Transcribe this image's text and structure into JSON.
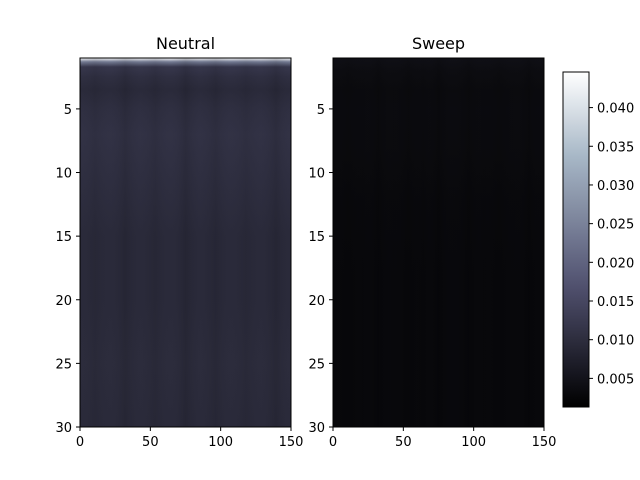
{
  "chart_data": [
    {
      "type": "heatmap",
      "title": "Neutral",
      "x_ticks": [
        0,
        50,
        100,
        150
      ],
      "y_ticks": [
        5,
        10,
        15,
        20,
        25,
        30
      ],
      "xlim": [
        0,
        150
      ],
      "ylim": [
        30,
        1
      ],
      "profile": [
        {
          "y": 1.0,
          "value": 0.044
        },
        {
          "y": 1.3,
          "value": 0.024
        },
        {
          "y": 1.7,
          "value": 0.012
        },
        {
          "y": 2.5,
          "value": 0.0105
        },
        {
          "y": 3.5,
          "value": 0.0095
        },
        {
          "y": 5.0,
          "value": 0.0105
        },
        {
          "y": 7.0,
          "value": 0.011
        },
        {
          "y": 10.0,
          "value": 0.0105
        },
        {
          "y": 15.0,
          "value": 0.0095
        },
        {
          "y": 20.0,
          "value": 0.0095
        },
        {
          "y": 25.0,
          "value": 0.0098
        },
        {
          "y": 30.0,
          "value": 0.0095
        }
      ]
    },
    {
      "type": "heatmap",
      "title": "Sweep",
      "x_ticks": [
        0,
        50,
        100,
        150
      ],
      "y_ticks": [
        5,
        10,
        15,
        20,
        25,
        30
      ],
      "xlim": [
        0,
        150
      ],
      "ylim": [
        30,
        1
      ],
      "profile": [
        {
          "y": 1.0,
          "value": 0.0042
        },
        {
          "y": 2.0,
          "value": 0.0036
        },
        {
          "y": 3.5,
          "value": 0.0032
        },
        {
          "y": 5.0,
          "value": 0.0033
        },
        {
          "y": 8.0,
          "value": 0.0032
        },
        {
          "y": 12.0,
          "value": 0.0029
        },
        {
          "y": 18.0,
          "value": 0.0027
        },
        {
          "y": 24.0,
          "value": 0.0027
        },
        {
          "y": 30.0,
          "value": 0.0027
        }
      ]
    }
  ],
  "colorbar": {
    "colormap": "bone",
    "range": [
      0.0013,
      0.0446
    ],
    "ticks": [
      "0.005",
      "0.010",
      "0.015",
      "0.020",
      "0.025",
      "0.030",
      "0.035",
      "0.040"
    ]
  }
}
